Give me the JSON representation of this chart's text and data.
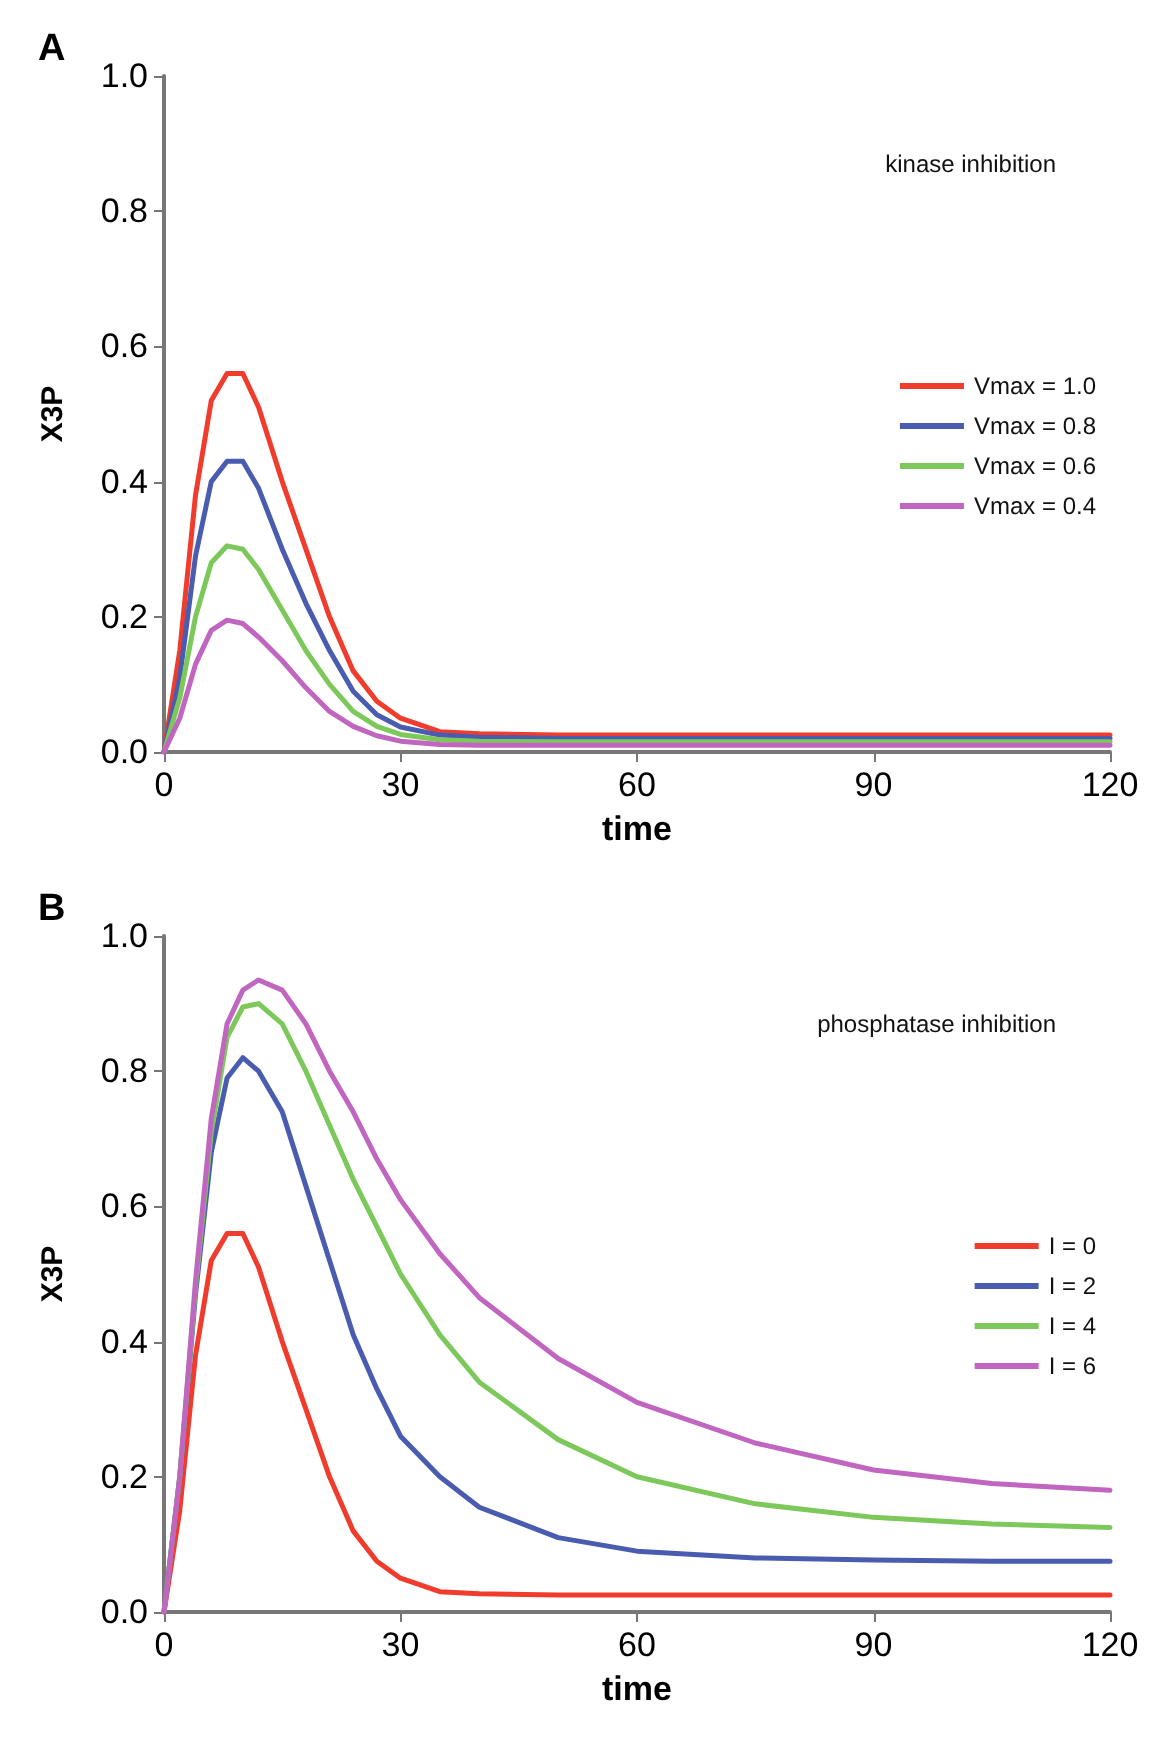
{
  "chart_data": [
    {
      "type": "line",
      "title": "A",
      "xlabel": "time",
      "ylabel": "X3P",
      "annotations": [
        "kinase inhibition"
      ],
      "x": [
        0,
        2,
        4,
        6,
        8,
        10,
        12,
        15,
        18,
        21,
        24,
        27,
        30,
        35,
        40,
        50,
        60,
        75,
        90,
        105,
        120
      ],
      "xlim": [
        0,
        120
      ],
      "ylim": [
        0,
        1
      ],
      "xticks": [
        0,
        30,
        60,
        90,
        120
      ],
      "yticks": [
        {
          "value": 0,
          "label": "0.0"
        },
        {
          "value": 0.2,
          "label": "0.2"
        },
        {
          "value": 0.4,
          "label": "0.4"
        },
        {
          "value": 0.6,
          "label": "0.6"
        },
        {
          "value": 0.8,
          "label": "0.8"
        },
        {
          "value": 1,
          "label": "1.0"
        }
      ],
      "grid": false,
      "legend": "right",
      "marker": "none",
      "line_style": "solid",
      "series": [
        {
          "name": "Vmax = 1.0",
          "color": "#f03c2c",
          "values": [
            0,
            0.15,
            0.38,
            0.52,
            0.56,
            0.56,
            0.51,
            0.4,
            0.3,
            0.2,
            0.12,
            0.075,
            0.05,
            0.03,
            0.027,
            0.025,
            0.025,
            0.025,
            0.025,
            0.025,
            0.025
          ]
        },
        {
          "name": "Vmax = 0.8",
          "color": "#4a5cb0",
          "values": [
            0,
            0.11,
            0.29,
            0.4,
            0.43,
            0.43,
            0.39,
            0.3,
            0.22,
            0.15,
            0.09,
            0.055,
            0.037,
            0.025,
            0.022,
            0.02,
            0.02,
            0.02,
            0.02,
            0.02,
            0.02
          ]
        },
        {
          "name": "Vmax = 0.6",
          "color": "#7cc85a",
          "values": [
            0,
            0.08,
            0.2,
            0.28,
            0.305,
            0.3,
            0.27,
            0.21,
            0.15,
            0.1,
            0.06,
            0.038,
            0.026,
            0.018,
            0.016,
            0.015,
            0.015,
            0.015,
            0.015,
            0.015,
            0.015
          ]
        },
        {
          "name": "Vmax = 0.4",
          "color": "#c065c0",
          "values": [
            0,
            0.05,
            0.13,
            0.18,
            0.195,
            0.19,
            0.17,
            0.135,
            0.095,
            0.06,
            0.038,
            0.024,
            0.016,
            0.011,
            0.01,
            0.01,
            0.01,
            0.01,
            0.01,
            0.01,
            0.01
          ]
        }
      ]
    },
    {
      "type": "line",
      "title": "B",
      "xlabel": "time",
      "ylabel": "X3P",
      "annotations": [
        "phosphatase inhibition"
      ],
      "x": [
        0,
        2,
        4,
        6,
        8,
        10,
        12,
        15,
        18,
        21,
        24,
        27,
        30,
        35,
        40,
        50,
        60,
        75,
        90,
        105,
        120
      ],
      "xlim": [
        0,
        120
      ],
      "ylim": [
        0,
        1
      ],
      "xticks": [
        0,
        30,
        60,
        90,
        120
      ],
      "yticks": [
        {
          "value": 0,
          "label": "0.0"
        },
        {
          "value": 0.2,
          "label": "0.2"
        },
        {
          "value": 0.4,
          "label": "0.4"
        },
        {
          "value": 0.6,
          "label": "0.6"
        },
        {
          "value": 0.8,
          "label": "0.8"
        },
        {
          "value": 1,
          "label": "1.0"
        }
      ],
      "grid": false,
      "legend": "right",
      "marker": "none",
      "line_style": "solid",
      "series": [
        {
          "name": "I = 0",
          "color": "#f03c2c",
          "values": [
            0,
            0.15,
            0.38,
            0.52,
            0.56,
            0.56,
            0.51,
            0.4,
            0.3,
            0.2,
            0.12,
            0.075,
            0.05,
            0.03,
            0.027,
            0.025,
            0.025,
            0.025,
            0.025,
            0.025,
            0.025
          ]
        },
        {
          "name": "I = 2",
          "color": "#4a5cb0",
          "values": [
            0,
            0.2,
            0.47,
            0.68,
            0.79,
            0.82,
            0.8,
            0.74,
            0.63,
            0.52,
            0.41,
            0.33,
            0.26,
            0.2,
            0.155,
            0.11,
            0.09,
            0.08,
            0.077,
            0.075,
            0.075
          ]
        },
        {
          "name": "I = 4",
          "color": "#7cc85a",
          "values": [
            0,
            0.2,
            0.48,
            0.71,
            0.85,
            0.895,
            0.9,
            0.87,
            0.8,
            0.72,
            0.64,
            0.57,
            0.5,
            0.41,
            0.34,
            0.255,
            0.2,
            0.16,
            0.14,
            0.13,
            0.125
          ]
        },
        {
          "name": "I = 6",
          "color": "#c065c0",
          "values": [
            0,
            0.2,
            0.49,
            0.73,
            0.87,
            0.92,
            0.935,
            0.92,
            0.87,
            0.8,
            0.74,
            0.67,
            0.61,
            0.53,
            0.465,
            0.375,
            0.31,
            0.25,
            0.21,
            0.19,
            0.18
          ]
        }
      ]
    }
  ]
}
